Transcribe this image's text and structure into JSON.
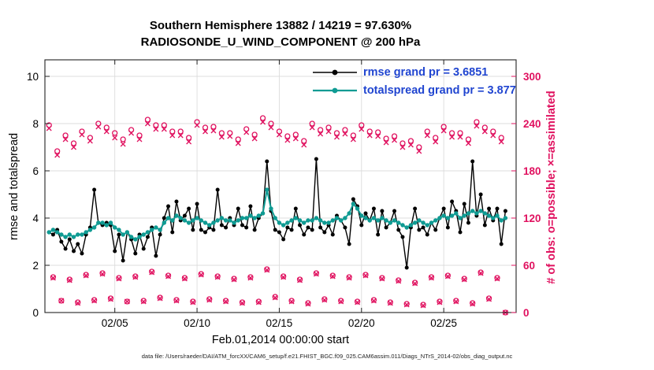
{
  "title": {
    "line1": "Southern Hemisphere 13882 / 14219 = 97.630%",
    "line2": "RADIOSONDE_U_WIND_COMPONENT @ 200 hPa"
  },
  "axes": {
    "left_label": "rmse and totalspread",
    "right_label": "# of obs: o=possible; ×=assimilated",
    "x_label": "Feb.01,2014 00:00:00 start"
  },
  "legend": [
    {
      "name": "rmse",
      "label": "rmse grand pr = 3.6851",
      "color": "#000000"
    },
    {
      "name": "totalspread",
      "label": "totalspread grand pr = 3.877",
      "color": "#0f9b93"
    }
  ],
  "footer": "data file: /Users/raeder/DAI/ATM_forcXX/CAM6_setup/f.e21.FHIST_BGC.f09_025.CAM6assim.011/Diags_NTrS_2014-02/obs_diag_output.nc",
  "colors": {
    "obs_pink": "#e0115f",
    "teal": "#0f9b93",
    "black": "#000000",
    "legend_text": "#2045d0",
    "grid": "#dcdcdc",
    "axis": "#222222"
  },
  "chart_data": {
    "type": "line",
    "title": "Southern Hemisphere 13882 / 14219 = 97.630%",
    "subtitle": "RADIOSONDE_U_WIND_COMPONENT @ 200 hPa",
    "xlabel": "Feb.01,2014 00:00:00 start",
    "ylabel_left": "rmse and totalspread",
    "ylabel_right": "# of obs: o=possible; ×=assimilated",
    "grid": true,
    "legend_position": "upper-right",
    "xlim": [
      0.75,
      29.4
    ],
    "ylim_left": [
      0,
      10.7
    ],
    "ylim_right": [
      0,
      321
    ],
    "yticks_left": [
      0,
      2,
      4,
      6,
      8,
      10
    ],
    "yticks_right": [
      0,
      60,
      120,
      180,
      240,
      300
    ],
    "xticks": [
      {
        "v": 5,
        "label": "02/05"
      },
      {
        "v": 10,
        "label": "02/10"
      },
      {
        "v": 15,
        "label": "02/15"
      },
      {
        "v": 20,
        "label": "02/20"
      },
      {
        "v": 25,
        "label": "02/25"
      }
    ],
    "x": [
      1,
      1.25,
      1.5,
      1.75,
      2,
      2.25,
      2.5,
      2.75,
      3,
      3.25,
      3.5,
      3.75,
      4,
      4.25,
      4.5,
      4.75,
      5,
      5.25,
      5.5,
      5.75,
      6,
      6.25,
      6.5,
      6.75,
      7,
      7.25,
      7.5,
      7.75,
      8,
      8.25,
      8.5,
      8.75,
      9,
      9.25,
      9.5,
      9.75,
      10,
      10.25,
      10.5,
      10.75,
      11,
      11.25,
      11.5,
      11.75,
      12,
      12.25,
      12.5,
      12.75,
      13,
      13.25,
      13.5,
      13.75,
      14,
      14.25,
      14.5,
      14.75,
      15,
      15.25,
      15.5,
      15.75,
      16,
      16.25,
      16.5,
      16.75,
      17,
      17.25,
      17.5,
      17.75,
      18,
      18.25,
      18.5,
      18.75,
      19,
      19.25,
      19.5,
      19.75,
      20,
      20.25,
      20.5,
      20.75,
      21,
      21.25,
      21.5,
      21.75,
      22,
      22.25,
      22.5,
      22.75,
      23,
      23.25,
      23.5,
      23.75,
      24,
      24.25,
      24.5,
      24.75,
      25,
      25.25,
      25.5,
      25.75,
      26,
      26.25,
      26.5,
      26.75,
      27,
      27.25,
      27.5,
      27.75,
      28,
      28.25,
      28.5,
      28.75
    ],
    "series": [
      {
        "name": "rmse",
        "style": "line",
        "axis": "left",
        "color": "#000000",
        "values": [
          3.4,
          3.3,
          3.5,
          3.0,
          2.7,
          3.1,
          2.6,
          2.9,
          2.5,
          3.3,
          3.6,
          5.2,
          3.8,
          3.7,
          3.8,
          3.7,
          2.6,
          3.3,
          2.2,
          3.4,
          3.1,
          2.5,
          3.3,
          2.7,
          3.2,
          3.6,
          2.4,
          3.3,
          4.0,
          4.5,
          3.4,
          4.7,
          3.9,
          4.1,
          4.4,
          3.5,
          4.6,
          3.5,
          3.4,
          3.6,
          3.5,
          5.2,
          3.7,
          3.6,
          4.0,
          3.7,
          4.4,
          3.7,
          3.6,
          4.5,
          3.5,
          4.0,
          4.2,
          6.4,
          4.3,
          3.5,
          3.4,
          3.1,
          3.6,
          3.5,
          4.4,
          3.7,
          3.3,
          3.6,
          3.5,
          6.5,
          3.6,
          3.4,
          3.7,
          3.3,
          4.1,
          3.9,
          3.6,
          2.9,
          4.8,
          4.5,
          3.7,
          4.2,
          3.9,
          4.4,
          3.3,
          4.3,
          3.6,
          3.8,
          4.3,
          3.5,
          3.2,
          1.9,
          3.6,
          4.4,
          3.5,
          3.6,
          3.3,
          3.8,
          3.5,
          4.0,
          4.4,
          3.6,
          4.7,
          4.3,
          3.4,
          4.6,
          3.8,
          6.4,
          4.1,
          5.0,
          3.7,
          4.4,
          3.9,
          4.4,
          2.9,
          4.3
        ]
      },
      {
        "name": "totalspread",
        "style": "line",
        "axis": "left",
        "color": "#0f9b93",
        "values": [
          3.4,
          3.5,
          3.4,
          3.3,
          3.2,
          3.3,
          3.2,
          3.3,
          3.3,
          3.4,
          3.5,
          3.6,
          3.8,
          3.8,
          3.7,
          3.8,
          3.6,
          3.5,
          3.3,
          3.4,
          3.2,
          3.1,
          3.2,
          3.3,
          3.4,
          3.5,
          3.6,
          3.5,
          3.8,
          4.0,
          3.9,
          4.1,
          4.0,
          3.9,
          3.8,
          3.9,
          4.0,
          3.9,
          3.8,
          3.7,
          3.8,
          3.9,
          4.0,
          3.9,
          3.9,
          3.8,
          3.9,
          4.0,
          4.0,
          4.1,
          4.0,
          4.1,
          4.2,
          5.2,
          4.4,
          4.0,
          3.8,
          3.7,
          3.8,
          3.9,
          4.0,
          3.9,
          3.8,
          3.9,
          3.9,
          4.0,
          3.9,
          3.8,
          3.8,
          3.9,
          4.0,
          3.9,
          4.0,
          4.2,
          4.6,
          4.4,
          4.1,
          4.0,
          3.9,
          4.0,
          3.9,
          4.0,
          3.9,
          3.8,
          3.9,
          3.8,
          3.7,
          3.6,
          3.7,
          3.8,
          3.9,
          3.8,
          3.7,
          3.8,
          3.9,
          4.0,
          4.1,
          4.0,
          4.1,
          4.2,
          4.0,
          4.1,
          4.2,
          4.3,
          4.2,
          4.3,
          4.2,
          4.1,
          4.0,
          4.1,
          3.9,
          4.0
        ]
      },
      {
        "name": "possible",
        "style": "o",
        "axis": "right",
        "color": "#e0115f",
        "values": [
          238,
          45,
          205,
          15,
          225,
          42,
          215,
          13,
          230,
          48,
          222,
          16,
          240,
          50,
          235,
          18,
          228,
          44,
          220,
          14,
          232,
          46,
          225,
          15,
          245,
          52,
          238,
          19,
          238,
          47,
          230,
          16,
          230,
          44,
          222,
          14,
          242,
          49,
          235,
          17,
          236,
          46,
          228,
          15,
          228,
          43,
          220,
          13,
          233,
          45,
          226,
          14,
          247,
          55,
          240,
          20,
          230,
          46,
          224,
          15,
          226,
          42,
          218,
          12,
          240,
          50,
          232,
          17,
          235,
          47,
          228,
          15,
          232,
          45,
          225,
          14,
          238,
          48,
          230,
          16,
          229,
          44,
          221,
          13,
          224,
          41,
          215,
          11,
          218,
          38,
          210,
          10,
          230,
          45,
          222,
          14,
          236,
          47,
          228,
          15,
          228,
          43,
          220,
          12,
          242,
          51,
          235,
          18,
          230,
          44,
          222,
          0
        ]
      },
      {
        "name": "assimilated",
        "style": "x",
        "axis": "right",
        "color": "#e0115f",
        "values": [
          234,
          44,
          200,
          15,
          220,
          41,
          210,
          12,
          226,
          47,
          218,
          15,
          236,
          49,
          230,
          17,
          222,
          43,
          214,
          14,
          228,
          45,
          220,
          14,
          240,
          51,
          233,
          18,
          233,
          46,
          225,
          15,
          225,
          43,
          217,
          13,
          238,
          48,
          230,
          16,
          231,
          45,
          223,
          14,
          224,
          42,
          215,
          12,
          229,
          44,
          221,
          13,
          242,
          54,
          235,
          19,
          226,
          45,
          219,
          14,
          221,
          41,
          213,
          11,
          235,
          49,
          227,
          16,
          230,
          46,
          223,
          14,
          227,
          44,
          220,
          13,
          233,
          47,
          225,
          15,
          224,
          43,
          216,
          12,
          219,
          40,
          210,
          10,
          213,
          37,
          205,
          9,
          225,
          44,
          217,
          13,
          231,
          46,
          223,
          14,
          223,
          42,
          215,
          11,
          237,
          50,
          230,
          17,
          225,
          43,
          217,
          0
        ]
      }
    ]
  }
}
